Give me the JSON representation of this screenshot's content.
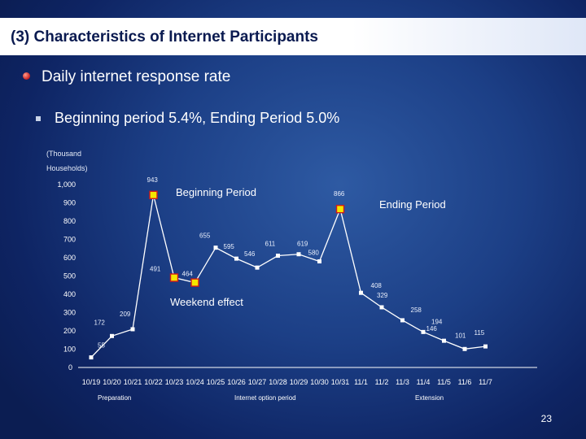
{
  "slide": {
    "title": "(3) Characteristics of Internet Participants",
    "line1": "Daily internet response rate",
    "line2": "Beginning period 5.4%,  Ending Period 5.0%",
    "unit_line1": "(Thousand",
    "unit_line2": "Households)",
    "annotations": {
      "beginning": "Beginning Period",
      "ending": "Ending Period",
      "weekend": "Weekend effect"
    },
    "phases": {
      "preparation": "Preparation",
      "option": "Internet option period",
      "extension": "Extension"
    },
    "page_number": "23"
  },
  "colors": {
    "line": "#ffffff",
    "marker": "#ffffff",
    "highlight": "#f5e600",
    "highlight_border": "#d01a1a"
  },
  "chart_data": {
    "type": "line",
    "categories": [
      "10/19",
      "10/20",
      "10/21",
      "10/22",
      "10/23",
      "10/24",
      "10/25",
      "10/26",
      "10/27",
      "10/28",
      "10/29",
      "10/30",
      "10/31",
      "11/1",
      "11/2",
      "11/3",
      "11/4",
      "11/5",
      "11/6",
      "11/7"
    ],
    "values": [
      55,
      172,
      209,
      943,
      491,
      464,
      655,
      595,
      546,
      611,
      619,
      580,
      866,
      408,
      329,
      258,
      194,
      146,
      101,
      115
    ],
    "value_labels": [
      "55",
      "172",
      "209",
      "943",
      "491",
      "464",
      "655",
      "595",
      "546",
      "611",
      "619",
      "580",
      "866",
      "408",
      "329",
      "258",
      "194",
      "146",
      "101",
      "115"
    ],
    "highlighted": [
      3,
      4,
      5,
      12
    ],
    "yticks": [
      "0",
      "100",
      "200",
      "300",
      "400",
      "500",
      "600",
      "700",
      "800",
      "900",
      "1,000"
    ],
    "ylim": [
      0,
      1000
    ],
    "grid": false
  }
}
